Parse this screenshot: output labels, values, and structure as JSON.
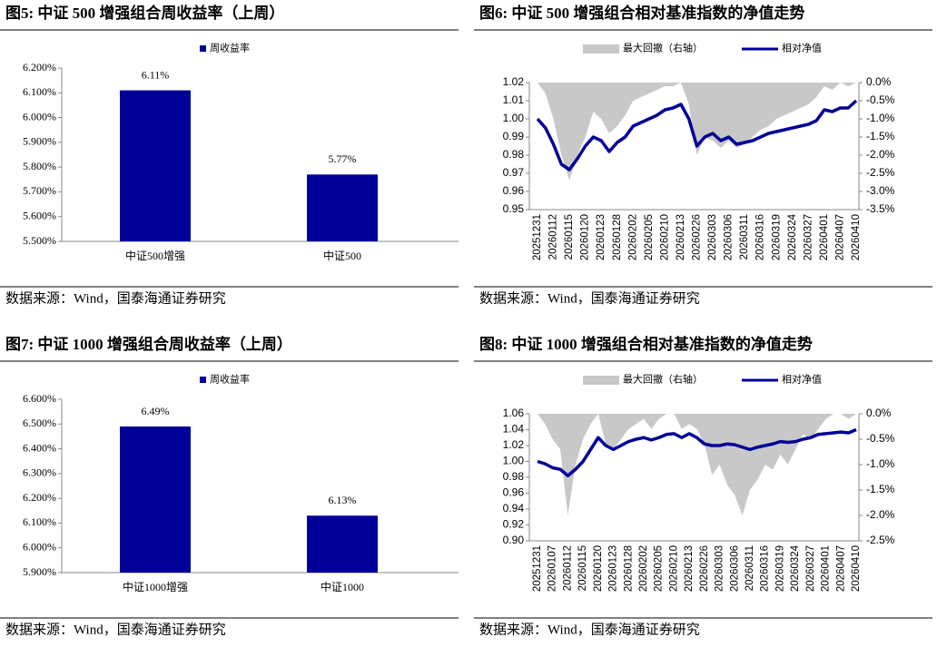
{
  "chart_data": [
    {
      "type": "bar",
      "title": "图5:  中证 500 增强组合周收益率（上周）",
      "source": "数据来源：Wind，国泰海通证券研究",
      "categories": [
        "中证500增强",
        "中证500"
      ],
      "series": [
        {
          "name": "周收益率",
          "color": "#000099",
          "values": [
            6.11,
            5.77
          ],
          "value_labels": [
            "6.11%",
            "5.77%"
          ]
        }
      ],
      "ylim": [
        5.5,
        6.2
      ],
      "yticks": [
        {
          "value": 5.5,
          "label": "5.500%"
        },
        {
          "value": 5.6,
          "label": "5.600%"
        },
        {
          "value": 5.7,
          "label": "5.700%"
        },
        {
          "value": 5.8,
          "label": "5.800%"
        },
        {
          "value": 5.9,
          "label": "5.900%"
        },
        {
          "value": 6.0,
          "label": "6.000%"
        },
        {
          "value": 6.1,
          "label": "6.100%"
        },
        {
          "value": 6.2,
          "label": "6.200%"
        }
      ]
    },
    {
      "type": "line",
      "title": "图6:  中证 500 增强组合相对基准指数的净值走势",
      "source": "数据来源：Wind，国泰海通证券研究",
      "categories": [
        "20251231",
        null,
        "20260112",
        null,
        "20260115",
        null,
        "20260120",
        null,
        "20260123",
        null,
        "20260128",
        null,
        "20260202",
        null,
        "20260205",
        null,
        "20260210",
        null,
        "20260213",
        null,
        "20260226",
        null,
        "20260303",
        null,
        "20260306",
        null,
        "20260311",
        null,
        "20260316",
        null,
        "20260319",
        null,
        "20260324",
        null,
        "20260327",
        null,
        "20260401",
        null,
        "20260407",
        null,
        "20260410"
      ],
      "series": [
        {
          "name": "最大回撤（右轴）",
          "type": "area",
          "axis": "y2",
          "color": "#c8c8c8",
          "values": [
            0,
            -0.3,
            -1.0,
            -2.0,
            -2.7,
            -2.0,
            -1.5,
            -0.8,
            -1.0,
            -1.4,
            -1.2,
            -0.9,
            -0.5,
            -0.4,
            -0.3,
            -0.2,
            -0.1,
            -0.1,
            0,
            -0.6,
            -2.0,
            -1.5,
            -1.6,
            -1.8,
            -1.6,
            -1.8,
            -1.7,
            -1.5,
            -1.3,
            -1.2,
            -1.0,
            -0.9,
            -0.8,
            -0.7,
            -0.6,
            -0.4,
            -0.1,
            -0.2,
            0,
            -0.1,
            0
          ]
        },
        {
          "name": "相对净值",
          "color": "#000099",
          "values": [
            1.0,
            0.995,
            0.986,
            0.975,
            0.972,
            0.978,
            0.985,
            0.99,
            0.988,
            0.982,
            0.987,
            0.99,
            0.996,
            0.998,
            1.0,
            1.002,
            1.005,
            1.006,
            1.008,
            1.0,
            0.985,
            0.99,
            0.992,
            0.988,
            0.99,
            0.986,
            0.987,
            0.988,
            0.99,
            0.992,
            0.993,
            0.994,
            0.995,
            0.996,
            0.997,
            0.999,
            1.005,
            1.004,
            1.006,
            1.006,
            1.01
          ]
        }
      ],
      "ylim": [
        0.95,
        1.02
      ],
      "yticks": [
        0.95,
        0.96,
        0.97,
        0.98,
        0.99,
        {
          "value": 1.0,
          "label": "1.00"
        },
        1.01,
        1.02
      ],
      "y2lim": [
        -3.5,
        0
      ],
      "y2ticks": [
        {
          "value": -3.5,
          "label": "-3.5%"
        },
        {
          "value": -3.0,
          "label": "-3.0%"
        },
        {
          "value": -2.5,
          "label": "-2.5%"
        },
        {
          "value": -2.0,
          "label": "-2.0%"
        },
        {
          "value": -1.5,
          "label": "-1.5%"
        },
        {
          "value": -1.0,
          "label": "-1.0%"
        },
        {
          "value": -0.5,
          "label": "-0.5%"
        },
        {
          "value": 0,
          "label": "0.0%"
        }
      ]
    },
    {
      "type": "bar",
      "title": "图7:  中证 1000 增强组合周收益率（上周）",
      "source": "数据来源：Wind，国泰海通证券研究",
      "categories": [
        "中证1000增强",
        "中证1000"
      ],
      "series": [
        {
          "name": "周收益率",
          "color": "#000099",
          "values": [
            6.49,
            6.13
          ],
          "value_labels": [
            "6.49%",
            "6.13%"
          ]
        }
      ],
      "ylim": [
        5.9,
        6.6
      ],
      "yticks": [
        {
          "value": 5.9,
          "label": "5.900%"
        },
        {
          "value": 6.0,
          "label": "6.000%"
        },
        {
          "value": 6.1,
          "label": "6.100%"
        },
        {
          "value": 6.2,
          "label": "6.200%"
        },
        {
          "value": 6.3,
          "label": "6.300%"
        },
        {
          "value": 6.4,
          "label": "6.400%"
        },
        {
          "value": 6.5,
          "label": "6.500%"
        },
        {
          "value": 6.6,
          "label": "6.600%"
        }
      ]
    },
    {
      "type": "line",
      "title": "图8:  中证 1000 增强组合相对基准指数的净值走势",
      "source": "数据来源：Wind，国泰海通证券研究",
      "categories": [
        "20251231",
        null,
        "20260107",
        null,
        "20260112",
        null,
        "20260115",
        null,
        "20260120",
        null,
        "20260123",
        null,
        "20260128",
        null,
        "20260202",
        null,
        "20260205",
        null,
        "20260210",
        null,
        "20260213",
        null,
        "20260226",
        null,
        "20260303",
        null,
        "20260306",
        null,
        "20260311",
        null,
        "20260316",
        null,
        "20260319",
        null,
        "20260324",
        null,
        "20260327",
        null,
        "20260401",
        null,
        "20260407",
        null,
        "20260410"
      ],
      "series": [
        {
          "name": "最大回撤（右轴）",
          "type": "area",
          "axis": "y2",
          "color": "#c8c8c8",
          "values": [
            0,
            -0.2,
            -0.5,
            -0.7,
            -2.0,
            -1.0,
            -0.5,
            -0.2,
            0,
            -0.6,
            -0.7,
            -0.5,
            -0.3,
            -0.2,
            -0.1,
            -0.3,
            -0.1,
            0,
            0,
            -0.3,
            -0.2,
            -0.3,
            -0.6,
            -1.2,
            -1.0,
            -1.4,
            -1.6,
            -2.0,
            -1.5,
            -1.3,
            -1.0,
            -1.1,
            -0.8,
            -1.0,
            -0.7,
            -0.4,
            -0.5,
            -0.3,
            -0.1,
            0,
            0,
            -0.1,
            0
          ]
        },
        {
          "name": "相对净值",
          "color": "#000099",
          "values": [
            1.0,
            0.997,
            0.992,
            0.99,
            0.982,
            0.99,
            1.0,
            1.015,
            1.03,
            1.02,
            1.015,
            1.02,
            1.025,
            1.028,
            1.03,
            1.027,
            1.03,
            1.034,
            1.035,
            1.03,
            1.035,
            1.03,
            1.022,
            1.02,
            1.02,
            1.022,
            1.021,
            1.018,
            1.015,
            1.018,
            1.02,
            1.022,
            1.025,
            1.024,
            1.025,
            1.028,
            1.03,
            1.034,
            1.035,
            1.036,
            1.037,
            1.036,
            1.04
          ]
        }
      ],
      "ylim": [
        0.9,
        1.06
      ],
      "yticks": [
        {
          "value": 0.9,
          "label": "0.90"
        },
        0.92,
        0.94,
        0.96,
        0.98,
        {
          "value": 1.0,
          "label": "1.00"
        },
        1.02,
        1.04,
        1.06
      ],
      "y2lim": [
        -2.5,
        0
      ],
      "y2ticks": [
        {
          "value": -2.5,
          "label": "-2.5%"
        },
        {
          "value": -2.0,
          "label": "-2.0%"
        },
        {
          "value": -1.5,
          "label": "-1.5%"
        },
        {
          "value": -1.0,
          "label": "-1.0%"
        },
        {
          "value": -0.5,
          "label": "-0.5%"
        },
        {
          "value": 0,
          "label": "0.0%"
        }
      ]
    }
  ]
}
